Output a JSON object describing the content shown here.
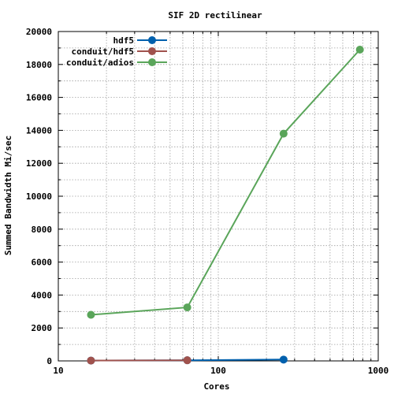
{
  "chart_data": {
    "type": "line",
    "title": "SIF 2D rectilinear",
    "xlabel": "Cores",
    "ylabel": "Summed Bandwidth Mi/sec",
    "xscale": "log",
    "xlim": [
      10,
      1000
    ],
    "ylim": [
      0,
      20000
    ],
    "xticks": [
      10,
      100,
      1000
    ],
    "xtick_labels": [
      "10",
      "100",
      "1000"
    ],
    "yticks": [
      0,
      2000,
      4000,
      6000,
      8000,
      10000,
      12000,
      14000,
      16000,
      18000,
      20000
    ],
    "ytick_labels": [
      "0",
      "2000",
      "4000",
      "6000",
      "8000",
      "10000",
      "12000",
      "14000",
      "16000",
      "18000",
      "20000"
    ],
    "grid": true,
    "legend_position": "top-left",
    "series": [
      {
        "name": "hdf5",
        "color": "#0060ad",
        "x": [
          16,
          64,
          256
        ],
        "y": [
          20,
          40,
          80
        ]
      },
      {
        "name": "conduit/hdf5",
        "color": "#a0524d",
        "x": [
          16,
          64
        ],
        "y": [
          20,
          40
        ]
      },
      {
        "name": "conduit/adios",
        "color": "#5aa55a",
        "x": [
          16,
          64,
          256,
          768
        ],
        "y": [
          2800,
          3250,
          13800,
          18900
        ]
      }
    ]
  }
}
